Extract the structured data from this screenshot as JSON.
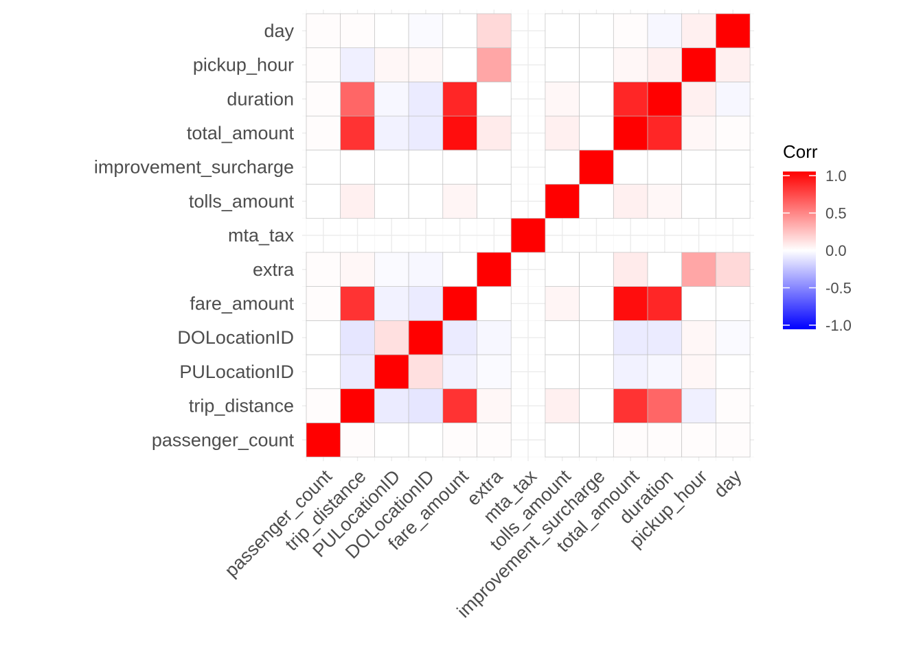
{
  "chart_data": {
    "type": "heatmap",
    "title": "",
    "xlabel": "",
    "ylabel": "",
    "variables": [
      "passenger_count",
      "trip_distance",
      "PULocationID",
      "DOLocationID",
      "fare_amount",
      "extra",
      "mta_tax",
      "tolls_amount",
      "improvement_surcharge",
      "total_amount",
      "duration",
      "pickup_hour",
      "day"
    ],
    "x_tick_labels": [
      "passenger_count",
      "trip_distance",
      "PULocationID",
      "DOLocationID",
      "fare_amount",
      "extra",
      "mta_tax",
      "tolls_amount",
      "improvement_surcharge",
      "total_amount",
      "duration",
      "pickup_hour",
      "day"
    ],
    "y_tick_labels": [
      "passenger_count",
      "trip_distance",
      "PULocationID",
      "DOLocationID",
      "fare_amount",
      "extra",
      "mta_tax",
      "tolls_amount",
      "improvement_surcharge",
      "total_amount",
      "duration",
      "pickup_hour",
      "day"
    ],
    "missing_variable": "mta_tax",
    "matrix": [
      [
        1.0,
        0.01,
        0.0,
        0.0,
        0.01,
        0.01,
        null,
        0.0,
        0.0,
        0.01,
        0.01,
        0.01,
        0.01
      ],
      [
        0.01,
        1.0,
        -0.08,
        -0.1,
        0.8,
        0.03,
        null,
        0.06,
        0.0,
        0.8,
        0.6,
        -0.06,
        0.01
      ],
      [
        0.0,
        -0.08,
        1.0,
        0.12,
        -0.05,
        -0.02,
        null,
        0.0,
        0.0,
        -0.05,
        -0.03,
        0.03,
        0.0
      ],
      [
        0.0,
        -0.1,
        0.12,
        1.0,
        -0.08,
        -0.03,
        null,
        0.0,
        0.0,
        -0.08,
        -0.08,
        0.03,
        -0.02
      ],
      [
        0.01,
        0.8,
        -0.05,
        -0.08,
        1.0,
        0.0,
        null,
        0.04,
        0.0,
        0.95,
        0.85,
        0.0,
        0.0
      ],
      [
        0.01,
        0.03,
        -0.02,
        -0.03,
        0.0,
        1.0,
        null,
        0.0,
        0.0,
        0.08,
        0.0,
        0.35,
        0.15
      ],
      [
        null,
        null,
        null,
        null,
        null,
        null,
        1.0,
        null,
        null,
        null,
        null,
        null,
        null
      ],
      [
        0.0,
        0.06,
        0.0,
        0.0,
        0.04,
        0.0,
        null,
        1.0,
        0.0,
        0.06,
        0.03,
        0.0,
        0.0
      ],
      [
        0.0,
        0.0,
        0.0,
        0.0,
        0.0,
        0.0,
        null,
        0.0,
        1.0,
        0.0,
        0.0,
        0.0,
        0.0
      ],
      [
        0.01,
        0.8,
        -0.05,
        -0.08,
        0.95,
        0.08,
        null,
        0.06,
        0.0,
        1.0,
        0.85,
        0.03,
        0.01
      ],
      [
        0.01,
        0.6,
        -0.03,
        -0.08,
        0.85,
        0.0,
        null,
        0.03,
        0.0,
        0.85,
        1.0,
        0.06,
        -0.03
      ],
      [
        0.01,
        -0.06,
        0.03,
        0.03,
        0.0,
        0.35,
        null,
        0.0,
        0.0,
        0.03,
        0.06,
        1.0,
        0.06
      ],
      [
        0.01,
        0.01,
        0.0,
        -0.02,
        0.0,
        0.15,
        null,
        0.0,
        0.0,
        0.01,
        -0.03,
        0.06,
        1.0
      ]
    ],
    "legend": {
      "title": "Corr",
      "placement": "right",
      "range": [
        -1.0,
        1.0
      ],
      "ticks": [
        1.0,
        0.5,
        0.0,
        -0.5,
        -1.0
      ],
      "tick_labels": [
        "1.0",
        "0.5",
        "0.0",
        "-0.5",
        "-1.0"
      ]
    },
    "colors": {
      "low": "#0000ff",
      "mid": "#ffffff",
      "high": "#ff0000",
      "grid": "#ebebeb",
      "tile_border": "#c0c0c0",
      "text": "#4d4d4d"
    },
    "grid": true,
    "x_label_rotation_deg": 45
  }
}
